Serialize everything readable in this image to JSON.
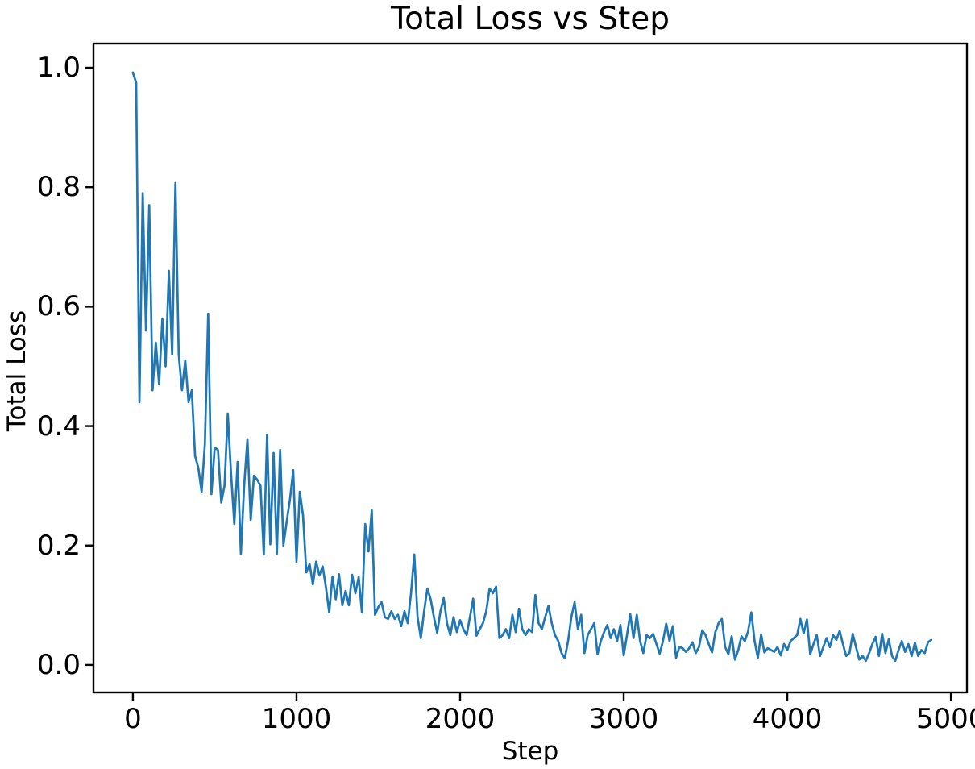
{
  "chart": {
    "title": "Total Loss vs Step",
    "xlabel": "Step",
    "ylabel": "Total Loss"
  },
  "chart_data": {
    "type": "line",
    "title": "Total Loss vs Step",
    "xlabel": "Step",
    "ylabel": "Total Loss",
    "x_ticks": [
      0,
      1000,
      2000,
      3000,
      4000,
      5000
    ],
    "y_ticks": [
      0.0,
      0.2,
      0.4,
      0.6,
      0.8,
      1.0
    ],
    "xlim": [
      -241,
      5098
    ],
    "ylim": [
      -0.046,
      1.0405
    ],
    "grid": false,
    "legend_position": "none",
    "line_color": "#1f77b4",
    "axis_color": "#000000",
    "background_color": "#ffffff",
    "series": [
      {
        "name": "Total Loss",
        "x": [
          0,
          20,
          40,
          60,
          80,
          100,
          120,
          140,
          160,
          180,
          200,
          220,
          240,
          260,
          280,
          300,
          320,
          340,
          360,
          380,
          400,
          420,
          440,
          460,
          480,
          500,
          520,
          540,
          560,
          580,
          600,
          620,
          640,
          660,
          680,
          700,
          720,
          740,
          760,
          780,
          800,
          820,
          840,
          860,
          880,
          900,
          920,
          940,
          960,
          980,
          1000,
          1020,
          1040,
          1060,
          1080,
          1100,
          1120,
          1140,
          1160,
          1180,
          1200,
          1220,
          1240,
          1260,
          1280,
          1300,
          1320,
          1340,
          1360,
          1380,
          1400,
          1420,
          1440,
          1460,
          1480,
          1500,
          1520,
          1540,
          1560,
          1580,
          1600,
          1620,
          1640,
          1660,
          1680,
          1700,
          1720,
          1740,
          1760,
          1780,
          1800,
          1820,
          1840,
          1860,
          1880,
          1900,
          1920,
          1940,
          1960,
          1980,
          2000,
          2020,
          2040,
          2060,
          2080,
          2100,
          2120,
          2140,
          2160,
          2180,
          2200,
          2220,
          2240,
          2260,
          2280,
          2300,
          2320,
          2340,
          2360,
          2380,
          2400,
          2420,
          2440,
          2460,
          2480,
          2500,
          2520,
          2540,
          2560,
          2580,
          2600,
          2620,
          2640,
          2660,
          2680,
          2700,
          2720,
          2740,
          2760,
          2780,
          2800,
          2820,
          2840,
          2860,
          2880,
          2900,
          2920,
          2940,
          2960,
          2980,
          3000,
          3020,
          3040,
          3060,
          3080,
          3100,
          3120,
          3140,
          3160,
          3180,
          3200,
          3220,
          3240,
          3260,
          3280,
          3300,
          3320,
          3340,
          3360,
          3380,
          3400,
          3420,
          3440,
          3460,
          3480,
          3500,
          3520,
          3540,
          3560,
          3580,
          3600,
          3620,
          3640,
          3660,
          3680,
          3700,
          3720,
          3740,
          3760,
          3780,
          3800,
          3820,
          3840,
          3860,
          3880,
          3900,
          3920,
          3940,
          3960,
          3980,
          4000,
          4020,
          4040,
          4060,
          4080,
          4100,
          4120,
          4140,
          4160,
          4180,
          4200,
          4220,
          4240,
          4260,
          4280,
          4300,
          4320,
          4340,
          4360,
          4380,
          4400,
          4420,
          4440,
          4460,
          4480,
          4500,
          4520,
          4540,
          4560,
          4580,
          4600,
          4620,
          4640,
          4660,
          4680,
          4700,
          4720,
          4740,
          4760,
          4780,
          4800,
          4820,
          4840,
          4860,
          4880
        ],
        "y": [
          0.992,
          0.975,
          0.44,
          0.79,
          0.56,
          0.77,
          0.46,
          0.54,
          0.47,
          0.58,
          0.5,
          0.66,
          0.52,
          0.807,
          0.52,
          0.46,
          0.51,
          0.44,
          0.46,
          0.35,
          0.33,
          0.29,
          0.37,
          0.588,
          0.286,
          0.364,
          0.36,
          0.272,
          0.3,
          0.421,
          0.32,
          0.236,
          0.34,
          0.186,
          0.3,
          0.378,
          0.243,
          0.317,
          0.31,
          0.3,
          0.185,
          0.385,
          0.202,
          0.355,
          0.186,
          0.36,
          0.2,
          0.24,
          0.277,
          0.326,
          0.173,
          0.29,
          0.25,
          0.155,
          0.169,
          0.135,
          0.173,
          0.15,
          0.165,
          0.13,
          0.088,
          0.148,
          0.11,
          0.152,
          0.1,
          0.124,
          0.1,
          0.151,
          0.12,
          0.147,
          0.088,
          0.236,
          0.19,
          0.259,
          0.084,
          0.097,
          0.105,
          0.08,
          0.077,
          0.09,
          0.077,
          0.084,
          0.065,
          0.09,
          0.07,
          0.12,
          0.185,
          0.08,
          0.045,
          0.09,
          0.128,
          0.11,
          0.08,
          0.054,
          0.09,
          0.112,
          0.07,
          0.05,
          0.08,
          0.055,
          0.075,
          0.06,
          0.05,
          0.08,
          0.111,
          0.049,
          0.06,
          0.07,
          0.09,
          0.128,
          0.12,
          0.131,
          0.045,
          0.05,
          0.06,
          0.045,
          0.084,
          0.055,
          0.094,
          0.06,
          0.05,
          0.06,
          0.055,
          0.117,
          0.07,
          0.06,
          0.08,
          0.099,
          0.07,
          0.05,
          0.04,
          0.02,
          0.011,
          0.04,
          0.08,
          0.105,
          0.06,
          0.084,
          0.02,
          0.05,
          0.06,
          0.07,
          0.018,
          0.04,
          0.055,
          0.067,
          0.045,
          0.06,
          0.04,
          0.067,
          0.016,
          0.05,
          0.085,
          0.045,
          0.084,
          0.04,
          0.02,
          0.05,
          0.045,
          0.052,
          0.035,
          0.019,
          0.04,
          0.069,
          0.04,
          0.065,
          0.012,
          0.03,
          0.028,
          0.022,
          0.028,
          0.038,
          0.02,
          0.03,
          0.058,
          0.05,
          0.035,
          0.021,
          0.055,
          0.07,
          0.077,
          0.03,
          0.018,
          0.048,
          0.009,
          0.025,
          0.048,
          0.04,
          0.056,
          0.088,
          0.04,
          0.012,
          0.051,
          0.021,
          0.028,
          0.025,
          0.022,
          0.03,
          0.016,
          0.035,
          0.025,
          0.04,
          0.045,
          0.05,
          0.077,
          0.053,
          0.076,
          0.018,
          0.035,
          0.05,
          0.015,
          0.03,
          0.045,
          0.03,
          0.05,
          0.042,
          0.057,
          0.035,
          0.015,
          0.02,
          0.052,
          0.03,
          0.009,
          0.015,
          0.007,
          0.02,
          0.035,
          0.047,
          0.015,
          0.052,
          0.02,
          0.043,
          0.015,
          0.007,
          0.025,
          0.04,
          0.022,
          0.035,
          0.015,
          0.037,
          0.015,
          0.025,
          0.02,
          0.038,
          0.042
        ]
      }
    ]
  }
}
